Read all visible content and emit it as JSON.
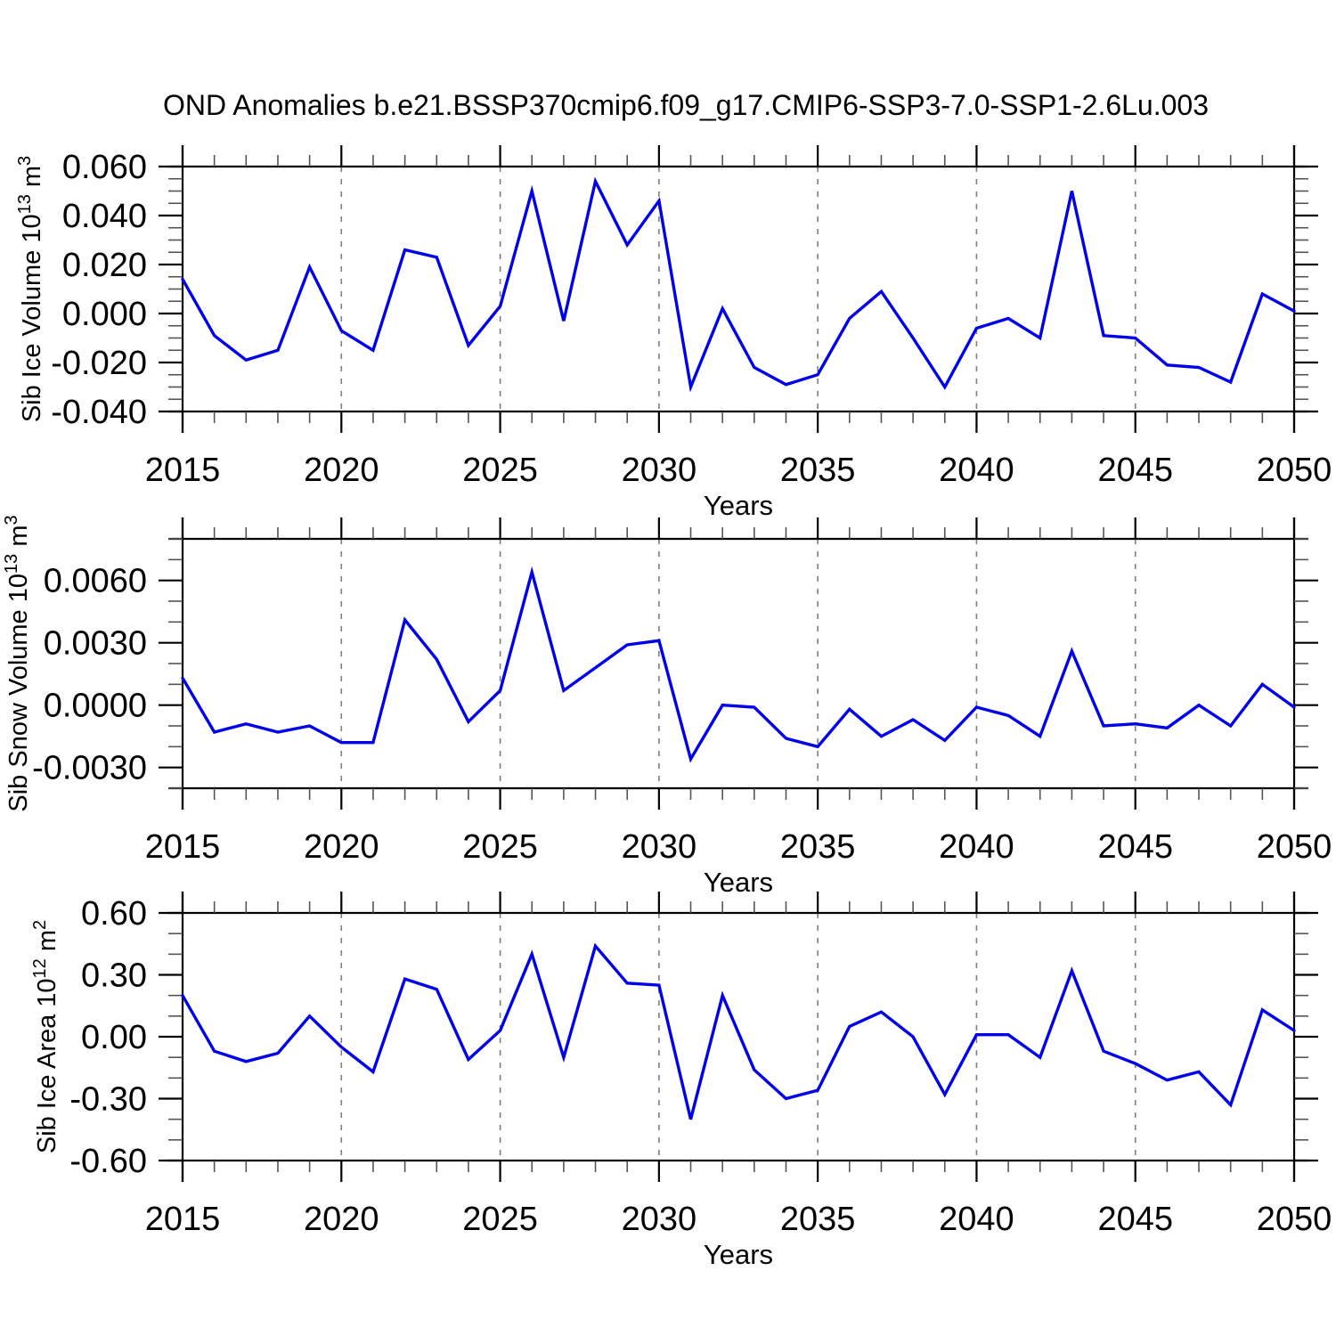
{
  "title": "OND Anomalies b.e21.BSSP370cmip6.f09_g17.CMIP6-SSP3-7.0-SSP1-2.6Lu.003",
  "colors": {
    "line": "#0000eb",
    "grid": "#7f7f7f",
    "axis": "#000000",
    "minor_tick": "#555555"
  },
  "years": [
    2015,
    2016,
    2017,
    2018,
    2019,
    2020,
    2021,
    2022,
    2023,
    2024,
    2025,
    2026,
    2027,
    2028,
    2029,
    2030,
    2031,
    2032,
    2033,
    2034,
    2035,
    2036,
    2037,
    2038,
    2039,
    2040,
    2041,
    2042,
    2043,
    2044,
    2045,
    2046,
    2047,
    2048,
    2049,
    2050
  ],
  "chart_data": [
    {
      "type": "line",
      "name": "sib-ice-volume",
      "ylabel": "Sib Ice Volume 10^13 m^3",
      "ylabel_segments": [
        [
          "Sib Ice Volume 10",
          false
        ],
        [
          "13",
          true
        ],
        [
          " m",
          false
        ],
        [
          "3",
          true
        ]
      ],
      "xlabel": "Years",
      "ylim": [
        -0.04,
        0.06
      ],
      "ytick_values": [
        0.06,
        0.04,
        0.02,
        0.0,
        -0.02,
        -0.04
      ],
      "ytick_labels": [
        "0.060",
        "0.040",
        "0.020",
        "0.000",
        "-0.020",
        "-0.040"
      ],
      "ytick_minor_step": 0.005,
      "xlim": [
        2015,
        2050
      ],
      "xtick_values": [
        2015,
        2020,
        2025,
        2030,
        2035,
        2040,
        2045,
        2050
      ],
      "xtick_labels": [
        "2015",
        "2020",
        "2025",
        "2030",
        "2035",
        "2040",
        "2045",
        "2050"
      ],
      "xtick_minor_step": 1,
      "grid_years": [
        2020,
        2025,
        2030,
        2035,
        2040,
        2045
      ],
      "grid": "vertical-dashed",
      "legend": "none",
      "values": [
        0.014,
        -0.009,
        -0.019,
        -0.015,
        0.019,
        -0.007,
        -0.015,
        0.026,
        0.023,
        -0.013,
        0.003,
        0.05,
        -0.003,
        0.054,
        0.028,
        0.046,
        -0.03,
        0.002,
        -0.022,
        -0.029,
        -0.025,
        -0.002,
        0.009,
        -0.01,
        -0.03,
        -0.006,
        -0.002,
        -0.01,
        0.05,
        -0.009,
        -0.01,
        -0.021,
        -0.022,
        -0.028,
        0.008,
        0.001
      ]
    },
    {
      "type": "line",
      "name": "sib-snow-volume",
      "ylabel": "Sib Snow Volume 10^13 m^3",
      "ylabel_segments": [
        [
          "Sib Snow Volume 10",
          false
        ],
        [
          "13",
          true
        ],
        [
          " m",
          false
        ],
        [
          "3",
          true
        ]
      ],
      "xlabel": "Years",
      "ylim": [
        -0.004,
        0.008
      ],
      "ytick_values": [
        0.006,
        0.003,
        0.0,
        -0.003
      ],
      "ytick_labels": [
        "0.0060",
        "0.0030",
        "0.0000",
        "-0.0030"
      ],
      "ytick_minor_step": 0.001,
      "xlim": [
        2015,
        2050
      ],
      "xtick_values": [
        2015,
        2020,
        2025,
        2030,
        2035,
        2040,
        2045,
        2050
      ],
      "xtick_labels": [
        "2015",
        "2020",
        "2025",
        "2030",
        "2035",
        "2040",
        "2045",
        "2050"
      ],
      "xtick_minor_step": 1,
      "grid_years": [
        2020,
        2025,
        2030,
        2035,
        2040,
        2045
      ],
      "grid": "vertical-dashed",
      "legend": "none",
      "values": [
        0.0013,
        -0.0013,
        -0.0009,
        -0.0013,
        -0.001,
        -0.0018,
        -0.0018,
        0.0041,
        0.0022,
        -0.0008,
        0.0007,
        0.0064,
        0.0007,
        0.0018,
        0.0029,
        0.0031,
        -0.0026,
        0.0,
        -0.0001,
        -0.0016,
        -0.002,
        -0.0002,
        -0.0015,
        -0.0007,
        -0.0017,
        -0.0001,
        -0.0005,
        -0.0015,
        0.0026,
        -0.001,
        -0.0009,
        -0.0011,
        0.0,
        -0.001,
        0.001,
        -0.0001
      ]
    },
    {
      "type": "line",
      "name": "sib-ice-area",
      "ylabel": "Sib Ice Area 10^12 m^2",
      "ylabel_segments": [
        [
          "Sib Ice Area 10",
          false
        ],
        [
          "12",
          true
        ],
        [
          " m",
          false
        ],
        [
          "2",
          true
        ]
      ],
      "xlabel": "Years",
      "ylim": [
        -0.6,
        0.6
      ],
      "ytick_values": [
        0.6,
        0.3,
        0.0,
        -0.3,
        -0.6
      ],
      "ytick_labels": [
        "0.60",
        "0.30",
        "0.00",
        "-0.30",
        "-0.60"
      ],
      "ytick_minor_step": 0.1,
      "xlim": [
        2015,
        2050
      ],
      "xtick_values": [
        2015,
        2020,
        2025,
        2030,
        2035,
        2040,
        2045,
        2050
      ],
      "xtick_labels": [
        "2015",
        "2020",
        "2025",
        "2030",
        "2035",
        "2040",
        "2045",
        "2050"
      ],
      "xtick_minor_step": 1,
      "grid_years": [
        2020,
        2025,
        2030,
        2035,
        2040,
        2045
      ],
      "grid": "vertical-dashed",
      "legend": "none",
      "values": [
        0.2,
        -0.07,
        -0.12,
        -0.08,
        0.1,
        -0.05,
        -0.17,
        0.28,
        0.23,
        -0.11,
        0.03,
        0.4,
        -0.1,
        0.44,
        0.26,
        0.25,
        -0.4,
        0.2,
        -0.16,
        -0.3,
        -0.26,
        0.05,
        0.12,
        0.0,
        -0.28,
        0.01,
        0.01,
        -0.1,
        0.32,
        -0.07,
        -0.13,
        -0.21,
        -0.17,
        -0.33,
        0.13,
        0.03
      ]
    }
  ]
}
